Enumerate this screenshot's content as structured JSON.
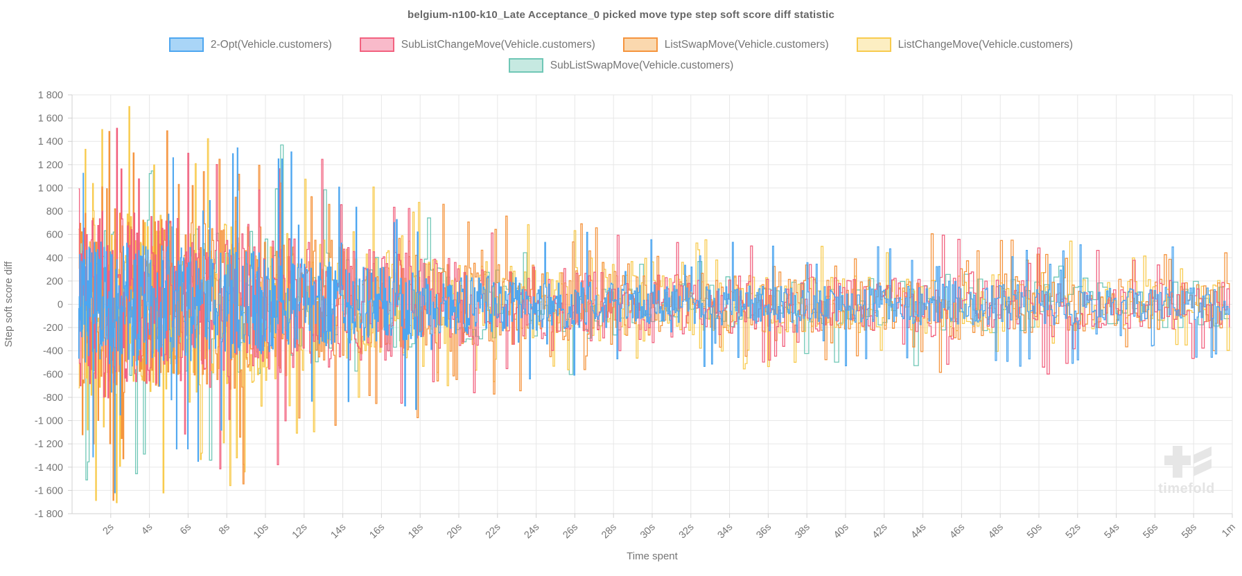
{
  "chart_data": {
    "type": "line",
    "subtype": "step-noise",
    "title": "belgium-n100-k10_Late Acceptance_0 picked move type step soft score diff statistic",
    "xlabel": "Time spent",
    "ylabel": "Step soft score diff",
    "x_range_seconds": [
      0,
      60
    ],
    "ylim": [
      -1800,
      1800
    ],
    "grid": true,
    "legend_position": "top",
    "x_ticks": {
      "values": [
        2,
        4,
        6,
        8,
        10,
        12,
        14,
        16,
        18,
        20,
        22,
        24,
        26,
        28,
        30,
        32,
        34,
        36,
        38,
        40,
        42,
        44,
        46,
        48,
        50,
        52,
        54,
        56,
        58,
        60
      ],
      "labels": [
        "2s",
        "4s",
        "6s",
        "8s",
        "10s",
        "12s",
        "14s",
        "16s",
        "18s",
        "20s",
        "22s",
        "24s",
        "26s",
        "28s",
        "30s",
        "32s",
        "34s",
        "36s",
        "38s",
        "40s",
        "42s",
        "44s",
        "46s",
        "48s",
        "50s",
        "52s",
        "54s",
        "56s",
        "58s",
        "1m"
      ]
    },
    "y_ticks": {
      "values": [
        1800,
        1600,
        1400,
        1200,
        1000,
        800,
        600,
        400,
        200,
        0,
        -200,
        -400,
        -600,
        -800,
        -1000,
        -1200,
        -1400,
        -1600,
        -1800
      ],
      "labels": [
        "1 800",
        "1 600",
        "1 400",
        "1 200",
        "1 000",
        "800",
        "600",
        "400",
        "200",
        "0",
        "-200",
        "-400",
        "-600",
        "-800",
        "-1 000",
        "-1 200",
        "-1 400",
        "-1 600",
        "-1 800"
      ]
    },
    "amplitude_envelope": [
      [
        0,
        1500
      ],
      [
        1,
        1800
      ],
      [
        3,
        1780
      ],
      [
        5,
        1650
      ],
      [
        7,
        1640
      ],
      [
        9,
        1560
      ],
      [
        11,
        1350
      ],
      [
        13,
        1250
      ],
      [
        15,
        1080
      ],
      [
        17,
        1060
      ],
      [
        19,
        900
      ],
      [
        21,
        820
      ],
      [
        23,
        780
      ],
      [
        25,
        700
      ],
      [
        27,
        700
      ],
      [
        29,
        600
      ],
      [
        31,
        560
      ],
      [
        33,
        600
      ],
      [
        35,
        560
      ],
      [
        37,
        540
      ],
      [
        39,
        520
      ],
      [
        41,
        540
      ],
      [
        43,
        500
      ],
      [
        45,
        720
      ],
      [
        47,
        600
      ],
      [
        49,
        560
      ],
      [
        51,
        640
      ],
      [
        53,
        480
      ],
      [
        55,
        460
      ],
      [
        57,
        500
      ],
      [
        60,
        440
      ]
    ],
    "series": [
      {
        "name": "2-Opt(Vehicle.customers)",
        "color": "#4da6f0",
        "fill": "#a9d5f7",
        "seed": 11,
        "points": 1250,
        "body": 0.3,
        "spike_prob": 0.055,
        "spike_min": 0.4
      },
      {
        "name": "SubListChangeMove(Vehicle.customers)",
        "color": "#f2617f",
        "fill": "#f9baca",
        "seed": 22,
        "points": 700,
        "body": 0.45,
        "spike_prob": 0.08,
        "spike_min": 0.5
      },
      {
        "name": "ListSwapMove(Vehicle.customers)",
        "color": "#f5943d",
        "fill": "#fad8ae",
        "seed": 33,
        "points": 750,
        "body": 0.46,
        "spike_prob": 0.1,
        "spike_min": 0.5
      },
      {
        "name": "ListChangeMove(Vehicle.customers)",
        "color": "#f8cb4e",
        "fill": "#fceec2",
        "seed": 44,
        "points": 750,
        "body": 0.46,
        "spike_prob": 0.1,
        "spike_min": 0.5
      },
      {
        "name": "SubListSwapMove(Vehicle.customers)",
        "color": "#6fc7b6",
        "fill": "#c6e9e1",
        "seed": 55,
        "points": 340,
        "body": 0.42,
        "spike_prob": 0.06,
        "spike_min": 0.5
      }
    ],
    "draw_order": [
      4,
      3,
      2,
      1,
      0
    ],
    "legend_rows": [
      [
        0,
        1,
        2,
        3
      ],
      [
        4
      ]
    ],
    "description": "Dense noisy step lines of per-step soft score diff for each picked move type; oscillation amplitude decays from about ±1800 near 0s to about ±400 near 1m; 2-Opt (blue) has the highest step density."
  },
  "watermark": {
    "text": "timefold"
  },
  "theme": {
    "background": "#ffffff",
    "title_color": "#666666",
    "label_color": "#757575",
    "grid_color": "#e7e7e7",
    "axis_color": "#d0d0d0",
    "watermark_color": "#e6e6e6"
  }
}
